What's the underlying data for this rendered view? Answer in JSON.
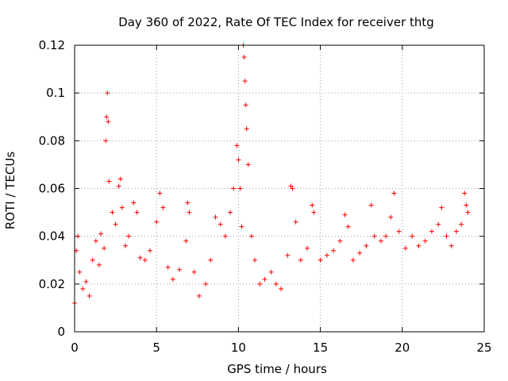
{
  "chart_data": {
    "type": "scatter",
    "title": "Day 360 of 2022, Rate Of TEC Index for receiver thtg",
    "xlabel": "GPS time / hours",
    "ylabel": "ROTI / TECUs",
    "xlim": [
      0,
      25
    ],
    "ylim": [
      0,
      0.12
    ],
    "x_ticks": [
      0,
      5,
      10,
      15,
      20,
      25
    ],
    "x_tick_labels": [
      "0",
      "5",
      "10",
      "15",
      "20",
      "25"
    ],
    "y_ticks": [
      0,
      0.02,
      0.04,
      0.06,
      0.08,
      0.1,
      0.12
    ],
    "y_tick_labels": [
      "0",
      "0.02",
      "0.04",
      "0.06",
      "0.08",
      "0.1",
      "0.12"
    ],
    "grid": true,
    "marker": "+",
    "color": "#ff0000",
    "series": [
      {
        "name": "ROTI",
        "points": [
          [
            0.0,
            0.012
          ],
          [
            0.1,
            0.034
          ],
          [
            0.2,
            0.04
          ],
          [
            0.3,
            0.025
          ],
          [
            0.5,
            0.018
          ],
          [
            0.7,
            0.021
          ],
          [
            0.9,
            0.015
          ],
          [
            1.1,
            0.03
          ],
          [
            1.3,
            0.038
          ],
          [
            1.5,
            0.028
          ],
          [
            1.6,
            0.041
          ],
          [
            1.8,
            0.035
          ],
          [
            1.9,
            0.08
          ],
          [
            1.95,
            0.09
          ],
          [
            2.0,
            0.1
          ],
          [
            2.05,
            0.088
          ],
          [
            2.1,
            0.063
          ],
          [
            2.3,
            0.05
          ],
          [
            2.5,
            0.045
          ],
          [
            2.7,
            0.061
          ],
          [
            2.8,
            0.064
          ],
          [
            2.9,
            0.052
          ],
          [
            3.1,
            0.036
          ],
          [
            3.3,
            0.04
          ],
          [
            3.6,
            0.054
          ],
          [
            3.8,
            0.05
          ],
          [
            4.0,
            0.031
          ],
          [
            4.3,
            0.03
          ],
          [
            4.6,
            0.034
          ],
          [
            5.0,
            0.046
          ],
          [
            5.2,
            0.058
          ],
          [
            5.4,
            0.052
          ],
          [
            5.7,
            0.027
          ],
          [
            6.0,
            0.022
          ],
          [
            6.4,
            0.026
          ],
          [
            6.8,
            0.038
          ],
          [
            6.9,
            0.054
          ],
          [
            7.0,
            0.05
          ],
          [
            7.3,
            0.025
          ],
          [
            7.6,
            0.015
          ],
          [
            8.0,
            0.02
          ],
          [
            8.3,
            0.03
          ],
          [
            8.6,
            0.048
          ],
          [
            8.9,
            0.045
          ],
          [
            9.2,
            0.04
          ],
          [
            9.5,
            0.05
          ],
          [
            9.7,
            0.06
          ],
          [
            9.9,
            0.078
          ],
          [
            10.0,
            0.072
          ],
          [
            10.1,
            0.06
          ],
          [
            10.2,
            0.044
          ],
          [
            10.3,
            0.12
          ],
          [
            10.35,
            0.115
          ],
          [
            10.4,
            0.105
          ],
          [
            10.45,
            0.095
          ],
          [
            10.5,
            0.085
          ],
          [
            10.6,
            0.07
          ],
          [
            10.8,
            0.04
          ],
          [
            11.0,
            0.03
          ],
          [
            11.3,
            0.02
          ],
          [
            11.6,
            0.022
          ],
          [
            12.0,
            0.025
          ],
          [
            12.3,
            0.02
          ],
          [
            12.6,
            0.018
          ],
          [
            13.0,
            0.032
          ],
          [
            13.2,
            0.061
          ],
          [
            13.3,
            0.06
          ],
          [
            13.5,
            0.046
          ],
          [
            13.8,
            0.03
          ],
          [
            14.2,
            0.035
          ],
          [
            14.5,
            0.053
          ],
          [
            14.6,
            0.05
          ],
          [
            15.0,
            0.03
          ],
          [
            15.4,
            0.032
          ],
          [
            15.8,
            0.034
          ],
          [
            16.2,
            0.038
          ],
          [
            16.5,
            0.049
          ],
          [
            16.7,
            0.044
          ],
          [
            17.0,
            0.03
          ],
          [
            17.4,
            0.033
          ],
          [
            17.8,
            0.036
          ],
          [
            18.1,
            0.053
          ],
          [
            18.3,
            0.04
          ],
          [
            18.7,
            0.038
          ],
          [
            19.0,
            0.04
          ],
          [
            19.3,
            0.048
          ],
          [
            19.5,
            0.058
          ],
          [
            19.8,
            0.042
          ],
          [
            20.2,
            0.035
          ],
          [
            20.6,
            0.04
          ],
          [
            21.0,
            0.036
          ],
          [
            21.4,
            0.038
          ],
          [
            21.8,
            0.042
          ],
          [
            22.2,
            0.045
          ],
          [
            22.4,
            0.052
          ],
          [
            22.7,
            0.04
          ],
          [
            23.0,
            0.036
          ],
          [
            23.3,
            0.042
          ],
          [
            23.6,
            0.045
          ],
          [
            23.8,
            0.058
          ],
          [
            23.9,
            0.053
          ],
          [
            24.0,
            0.05
          ]
        ]
      }
    ]
  }
}
